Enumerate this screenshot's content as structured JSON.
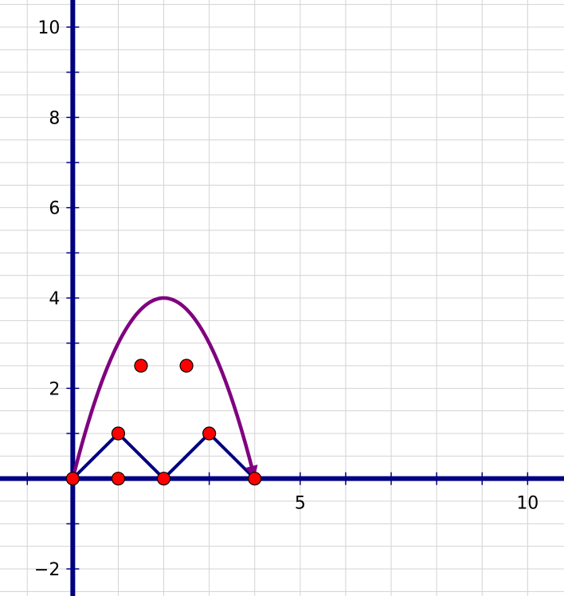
{
  "chart_data": {
    "type": "scatter",
    "title": "",
    "xlabel": "",
    "ylabel": "",
    "xlim": [
      -1.6,
      10.8
    ],
    "ylim": [
      -2.6,
      10.6
    ],
    "grid": true,
    "axis_color": "#000080",
    "x_ticks": [
      {
        "value": 5,
        "label": "5"
      },
      {
        "value": 10,
        "label": "10"
      }
    ],
    "y_ticks": [
      {
        "value": -2,
        "label": "−2"
      },
      {
        "value": 2,
        "label": "2"
      },
      {
        "value": 4,
        "label": "4"
      },
      {
        "value": 6,
        "label": "6"
      },
      {
        "value": 8,
        "label": "8"
      },
      {
        "value": 10,
        "label": "10"
      }
    ],
    "polyline": {
      "color": "#000080",
      "points": [
        [
          0,
          0
        ],
        [
          1,
          1
        ],
        [
          2,
          0
        ],
        [
          3,
          1
        ],
        [
          4,
          0
        ]
      ]
    },
    "curve": {
      "color": "#800080",
      "function": "y = x(4 - x)",
      "x_range": [
        0,
        4
      ],
      "arrow_at_end": true
    },
    "points": {
      "color": "#ff0000",
      "values": [
        [
          0,
          0
        ],
        [
          1,
          0
        ],
        [
          2,
          0
        ],
        [
          4,
          0
        ],
        [
          1,
          1
        ],
        [
          3,
          1
        ],
        [
          1.5,
          2.5
        ],
        [
          2.5,
          2.5
        ]
      ]
    }
  }
}
